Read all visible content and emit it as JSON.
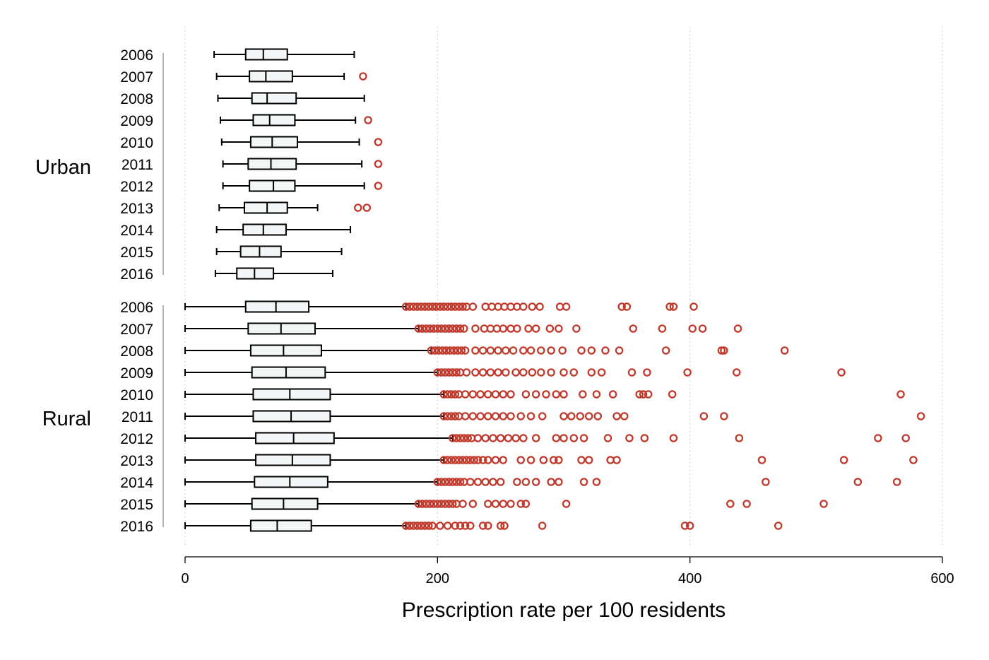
{
  "chart_data": {
    "type": "boxplot",
    "orientation": "horizontal",
    "xlabel": "Prescription rate per 100 residents",
    "xlim": [
      0,
      600
    ],
    "xticks": [
      0,
      200,
      400,
      600
    ],
    "grid": "vertical-dotted",
    "colors": {
      "box": "#000000",
      "box_fill": "#f2f6f6",
      "outlier": "#c0392b",
      "grid": "#c8c8c8"
    },
    "groups": [
      {
        "name": "Urban",
        "series": [
          {
            "year": "2006",
            "whisker_low": 23,
            "q1": 48,
            "median": 62,
            "q3": 81,
            "whisker_high": 134,
            "outliers": []
          },
          {
            "year": "2007",
            "whisker_low": 25,
            "q1": 51,
            "median": 64,
            "q3": 85,
            "whisker_high": 126,
            "outliers": [
              141
            ]
          },
          {
            "year": "2008",
            "whisker_low": 26,
            "q1": 53,
            "median": 65,
            "q3": 88,
            "whisker_high": 142,
            "outliers": []
          },
          {
            "year": "2009",
            "whisker_low": 28,
            "q1": 54,
            "median": 67,
            "q3": 87,
            "whisker_high": 135,
            "outliers": [
              145
            ]
          },
          {
            "year": "2010",
            "whisker_low": 29,
            "q1": 52,
            "median": 69,
            "q3": 89,
            "whisker_high": 138,
            "outliers": [
              153
            ]
          },
          {
            "year": "2011",
            "whisker_low": 30,
            "q1": 50,
            "median": 68,
            "q3": 88,
            "whisker_high": 140,
            "outliers": [
              153
            ]
          },
          {
            "year": "2012",
            "whisker_low": 30,
            "q1": 51,
            "median": 70,
            "q3": 87,
            "whisker_high": 142,
            "outliers": [
              153
            ]
          },
          {
            "year": "2013",
            "whisker_low": 27,
            "q1": 47,
            "median": 65,
            "q3": 81,
            "whisker_high": 105,
            "outliers": [
              137,
              144
            ]
          },
          {
            "year": "2014",
            "whisker_low": 25,
            "q1": 46,
            "median": 62,
            "q3": 80,
            "whisker_high": 131,
            "outliers": []
          },
          {
            "year": "2015",
            "whisker_low": 25,
            "q1": 44,
            "median": 59,
            "q3": 76,
            "whisker_high": 124,
            "outliers": []
          },
          {
            "year": "2016",
            "whisker_low": 24,
            "q1": 41,
            "median": 55,
            "q3": 70,
            "whisker_high": 117,
            "outliers": []
          }
        ]
      },
      {
        "name": "Rural",
        "series": [
          {
            "year": "2006",
            "whisker_low": 0,
            "q1": 48,
            "median": 72,
            "q3": 98,
            "whisker_high": 175,
            "outliers": [
              175,
              178,
              181,
              184,
              187,
              190,
              193,
              196,
              199,
              202,
              205,
              208,
              211,
              214,
              217,
              220,
              223,
              228,
              238,
              243,
              248,
              253,
              258,
              263,
              268,
              275,
              281,
              297,
              302,
              346,
              350,
              384,
              387,
              403
            ]
          },
          {
            "year": "2007",
            "whisker_low": 0,
            "q1": 50,
            "median": 76,
            "q3": 103,
            "whisker_high": 185,
            "outliers": [
              185,
              188,
              191,
              194,
              197,
              200,
              203,
              206,
              209,
              212,
              215,
              218,
              221,
              230,
              237,
              242,
              247,
              252,
              258,
              263,
              272,
              278,
              289,
              296,
              310,
              355,
              378,
              402,
              410,
              438
            ]
          },
          {
            "year": "2008",
            "whisker_low": 0,
            "q1": 52,
            "median": 78,
            "q3": 108,
            "whisker_high": 195,
            "outliers": [
              195,
              198,
              201,
              204,
              207,
              210,
              213,
              216,
              219,
              222,
              230,
              236,
              242,
              248,
              254,
              260,
              268,
              274,
              282,
              290,
              299,
              314,
              322,
              333,
              344,
              381,
              425,
              427,
              475
            ]
          },
          {
            "year": "2009",
            "whisker_low": 0,
            "q1": 53,
            "median": 80,
            "q3": 111,
            "whisker_high": 200,
            "outliers": [
              200,
              203,
              206,
              209,
              212,
              215,
              218,
              223,
              230,
              236,
              242,
              248,
              254,
              262,
              268,
              275,
              282,
              290,
              300,
              308,
              322,
              330,
              354,
              366,
              398,
              437,
              520
            ]
          },
          {
            "year": "2010",
            "whisker_low": 0,
            "q1": 54,
            "median": 83,
            "q3": 115,
            "whisker_high": 205,
            "outliers": [
              205,
              208,
              211,
              214,
              217,
              222,
              228,
              234,
              240,
              246,
              252,
              258,
              270,
              278,
              286,
              294,
              300,
              315,
              326,
              339,
              360,
              363,
              367,
              386,
              567
            ]
          },
          {
            "year": "2011",
            "whisker_low": 0,
            "q1": 54,
            "median": 84,
            "q3": 115,
            "whisker_high": 205,
            "outliers": [
              205,
              208,
              211,
              214,
              217,
              222,
              228,
              234,
              240,
              246,
              252,
              258,
              266,
              274,
              283,
              300,
              306,
              313,
              320,
              327,
              342,
              348,
              411,
              427,
              583
            ]
          },
          {
            "year": "2012",
            "whisker_low": 0,
            "q1": 56,
            "median": 86,
            "q3": 118,
            "whisker_high": 212,
            "outliers": [
              212,
              215,
              218,
              221,
              224,
              227,
              232,
              238,
              244,
              250,
              256,
              262,
              268,
              278,
              294,
              300,
              308,
              316,
              335,
              352,
              364,
              387,
              439,
              549,
              571
            ]
          },
          {
            "year": "2013",
            "whisker_low": 0,
            "q1": 56,
            "median": 85,
            "q3": 115,
            "whisker_high": 205,
            "outliers": [
              205,
              208,
              211,
              214,
              217,
              220,
              223,
              226,
              229,
              232,
              236,
              240,
              246,
              252,
              266,
              274,
              284,
              292,
              296,
              314,
              320,
              337,
              342,
              457,
              522,
              577
            ]
          },
          {
            "year": "2014",
            "whisker_low": 0,
            "q1": 55,
            "median": 83,
            "q3": 113,
            "whisker_high": 200,
            "outliers": [
              200,
              203,
              206,
              209,
              212,
              215,
              218,
              221,
              226,
              232,
              238,
              244,
              250,
              263,
              270,
              278,
              290,
              296,
              316,
              326,
              460,
              533,
              564
            ]
          },
          {
            "year": "2015",
            "whisker_low": 0,
            "q1": 53,
            "median": 78,
            "q3": 105,
            "whisker_high": 185,
            "outliers": [
              185,
              188,
              191,
              194,
              197,
              200,
              203,
              206,
              209,
              212,
              215,
              220,
              228,
              240,
              246,
              252,
              258,
              266,
              270,
              302,
              432,
              445,
              506
            ]
          },
          {
            "year": "2016",
            "whisker_low": 0,
            "q1": 52,
            "median": 73,
            "q3": 100,
            "whisker_high": 175,
            "outliers": [
              175,
              178,
              181,
              184,
              187,
              190,
              193,
              196,
              202,
              208,
              214,
              218,
              222,
              226,
              236,
              240,
              250,
              253,
              283,
              396,
              400,
              470
            ]
          }
        ]
      }
    ]
  }
}
